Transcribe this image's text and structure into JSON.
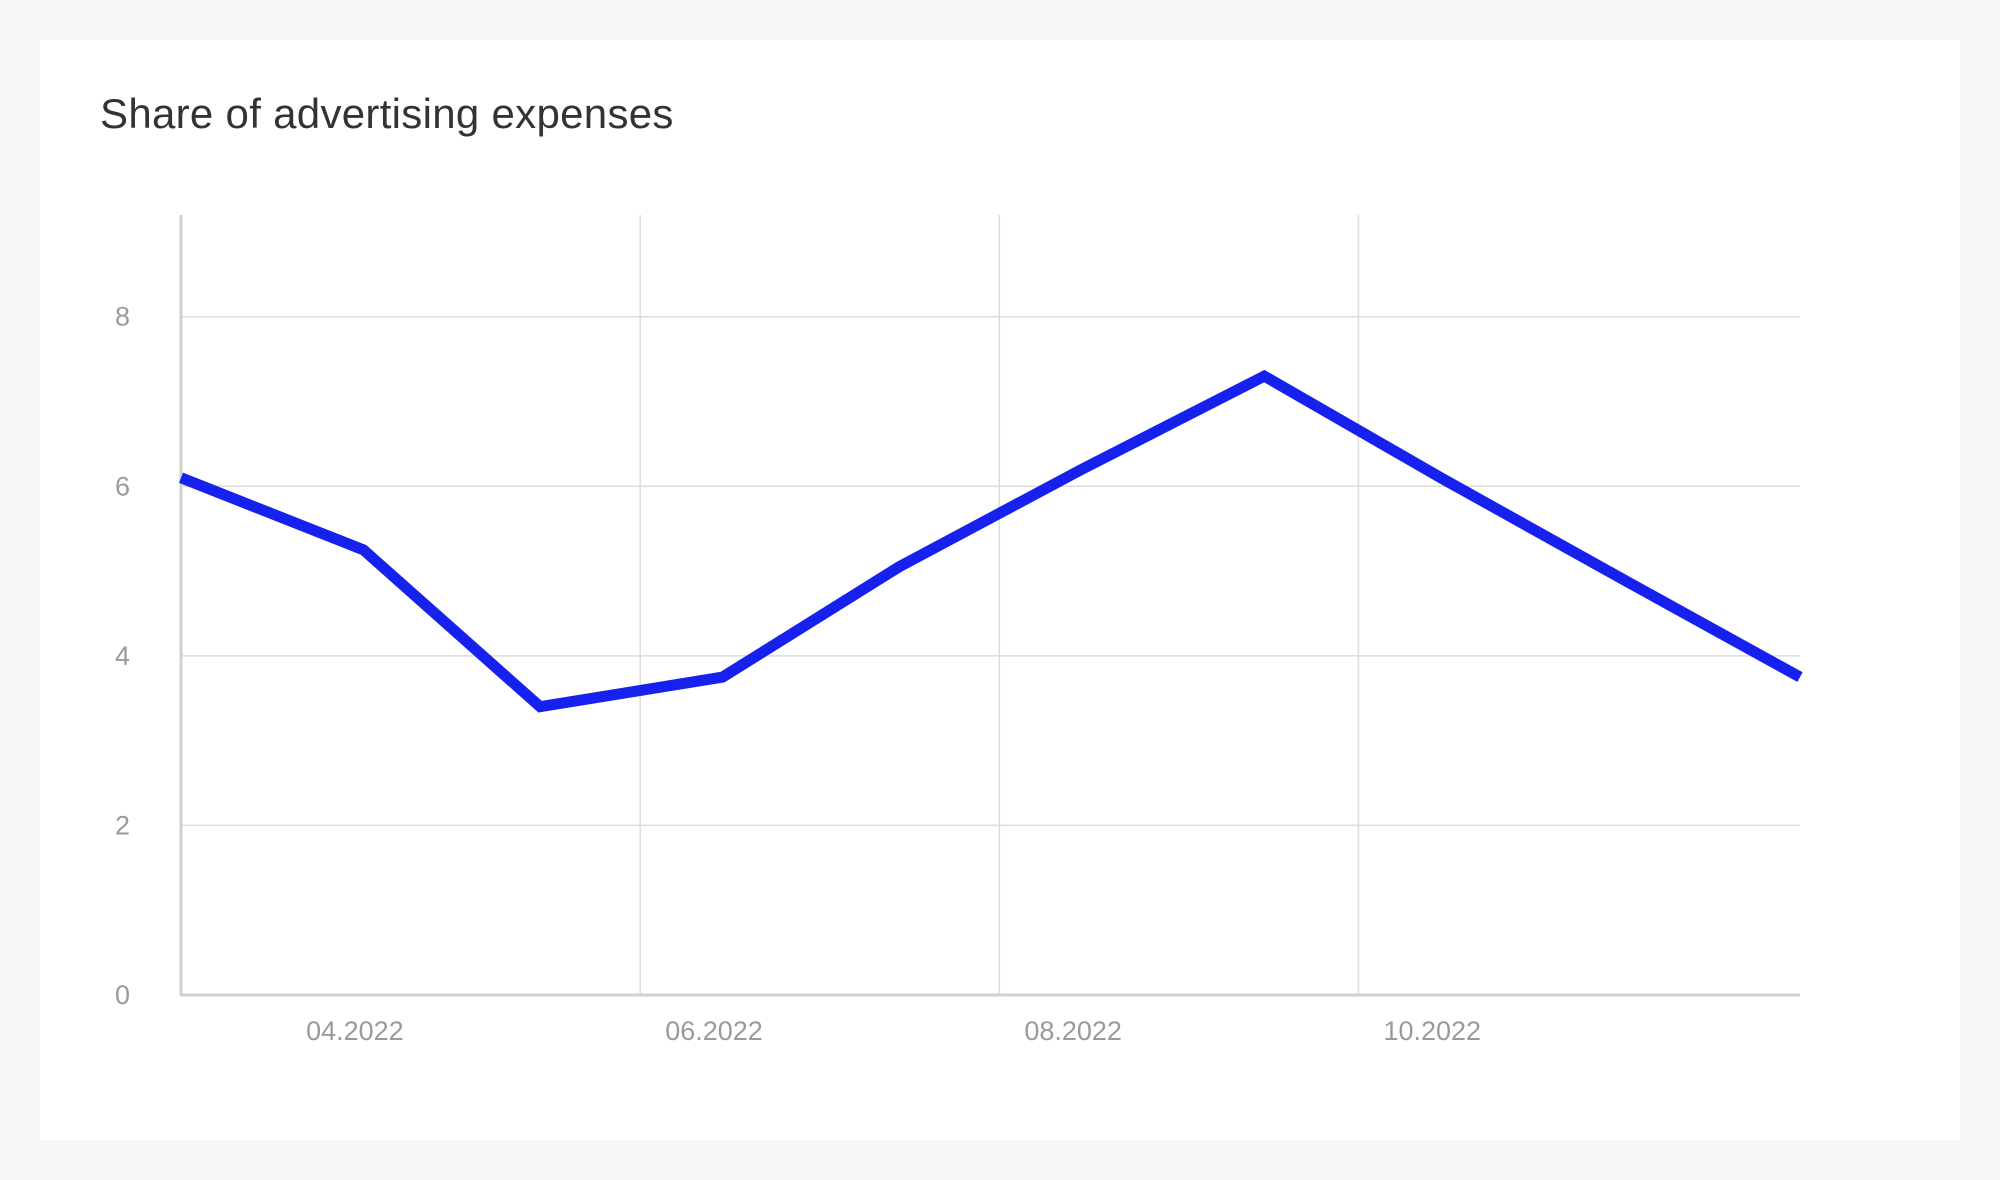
{
  "chart_data": {
    "type": "line",
    "title": "Share of advertising expenses",
    "xlabel": "",
    "ylabel": "",
    "x_ticks": [
      "04.2022",
      "06.2022",
      "08.2022",
      "10.2022"
    ],
    "y_ticks": [
      0,
      2,
      4,
      6,
      8
    ],
    "ylim": [
      0,
      9.2
    ],
    "xlim": [
      "2022-03-15",
      "2022-12-15"
    ],
    "grid": true,
    "series": [
      {
        "color": "#1621ee",
        "points": [
          {
            "x": "2022-03-15",
            "y": 6.1
          },
          {
            "x": "2022-04-15",
            "y": 5.25
          },
          {
            "x": "2022-05-15",
            "y": 3.4
          },
          {
            "x": "2022-06-15",
            "y": 3.75
          },
          {
            "x": "2022-07-15",
            "y": 5.05
          },
          {
            "x": "2022-08-15",
            "y": 6.2
          },
          {
            "x": "2022-09-15",
            "y": 7.3
          },
          {
            "x": "2022-10-15",
            "y": 6.1
          },
          {
            "x": "2022-11-15",
            "y": 4.9
          },
          {
            "x": "2022-12-15",
            "y": 3.75
          }
        ]
      }
    ]
  },
  "colors": {
    "line": "#1621ee",
    "grid": "#dcdcdc",
    "axis": "#d0d0d0",
    "tick_text": "#9a9a9a",
    "title_text": "#333333",
    "card_bg": "#ffffff",
    "page_bg": "#f7f7f7"
  }
}
